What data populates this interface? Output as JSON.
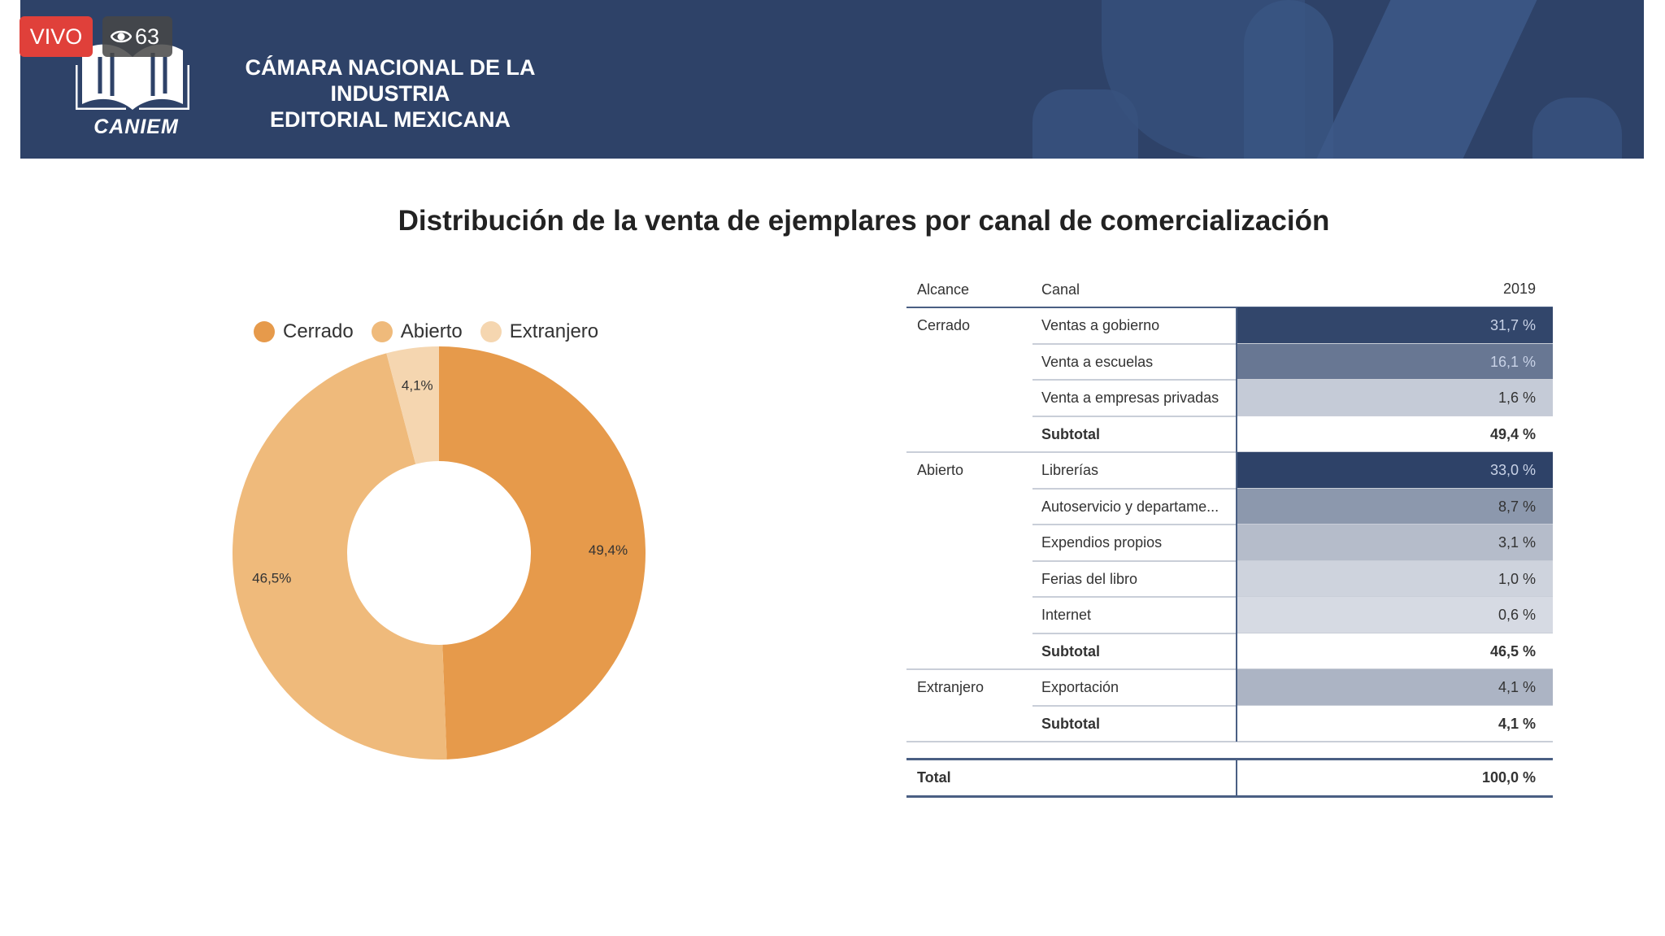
{
  "live": {
    "label": "VIVO",
    "viewers": "63"
  },
  "header": {
    "logo_text": "CANIEM",
    "org_line1": "CÁMARA NACIONAL DE LA INDUSTRIA",
    "org_line2": "EDITORIAL MEXICANA"
  },
  "slide": {
    "title": "Distribución de la venta de ejemplares por canal de comercialización"
  },
  "colors": {
    "cerrado": "#e69a4b",
    "abierto": "#efba7b",
    "extranjero": "#f5d6b0",
    "banner": "#2e4268"
  },
  "chart_data": {
    "type": "pie",
    "legend_position": "top",
    "categories": [
      "Cerrado",
      "Abierto",
      "Extranjero"
    ],
    "values": [
      49.4,
      46.5,
      4.1
    ],
    "data_labels": [
      "49,4%",
      "46,5%",
      "4,1%"
    ],
    "donut": true
  },
  "table": {
    "headers": {
      "alcance": "Alcance",
      "canal": "Canal",
      "year": "2019"
    },
    "rows": [
      {
        "alcance": "Cerrado",
        "canal": "Ventas a gobierno",
        "value": "31,7 %",
        "share": 31.7,
        "subtotal": false
      },
      {
        "alcance": "",
        "canal": "Venta a escuelas",
        "value": "16,1 %",
        "share": 16.1,
        "subtotal": false
      },
      {
        "alcance": "",
        "canal": "Venta a empresas privadas",
        "value": "1,6 %",
        "share": 1.6,
        "subtotal": false
      },
      {
        "alcance": "",
        "canal": "Subtotal",
        "value": "49,4 %",
        "subtotal": true
      },
      {
        "alcance": "Abierto",
        "canal": "Librerías",
        "value": "33,0 %",
        "share": 33.0,
        "subtotal": false
      },
      {
        "alcance": "",
        "canal": "Autoservicio y departame...",
        "value": "8,7 %",
        "share": 8.7,
        "subtotal": false
      },
      {
        "alcance": "",
        "canal": "Expendios propios",
        "value": "3,1 %",
        "share": 3.1,
        "subtotal": false
      },
      {
        "alcance": "",
        "canal": "Ferias del libro",
        "value": "1,0 %",
        "share": 1.0,
        "subtotal": false
      },
      {
        "alcance": "",
        "canal": "Internet",
        "value": "0,6 %",
        "share": 0.6,
        "subtotal": false
      },
      {
        "alcance": "",
        "canal": "Subtotal",
        "value": "46,5 %",
        "subtotal": true
      },
      {
        "alcance": "Extranjero",
        "canal": "Exportación",
        "value": "4,1 %",
        "share": 4.1,
        "subtotal": false
      },
      {
        "alcance": "",
        "canal": "Subtotal",
        "value": "4,1 %",
        "subtotal": true
      }
    ],
    "total": {
      "label": "Total",
      "value": "100,0 %"
    }
  }
}
